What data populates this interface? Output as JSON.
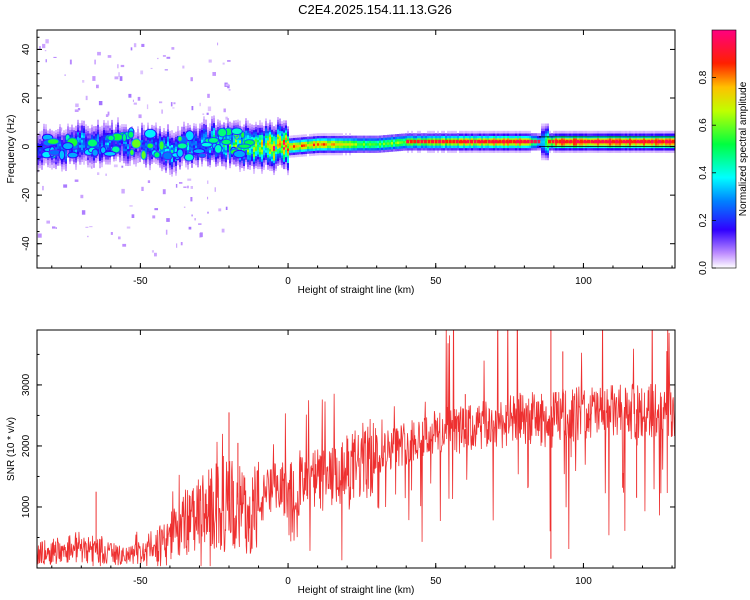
{
  "title": "C2E4.2025.154.11.13.G26",
  "chart_data": [
    {
      "type": "heatmap",
      "xlabel": "Height of straight line (km)",
      "ylabel": "Frequency (Hz)",
      "xlim": [
        -85,
        131
      ],
      "ylim": [
        -50,
        48
      ],
      "x_ticks": [
        -50,
        0,
        50,
        100
      ],
      "y_ticks": [
        -40,
        -20,
        0,
        20,
        40
      ],
      "colorbar": {
        "label": "Normalized spectral amplitude",
        "range": [
          0,
          1
        ],
        "ticks": [
          0.0,
          0.2,
          0.4,
          0.6,
          0.8
        ],
        "tick_labels": [
          "0.0",
          "0.2",
          "0.4",
          "0.6",
          "0.8"
        ],
        "colormap": [
          "#ffffff",
          "#b080ff",
          "#2000ff",
          "#00ffff",
          "#00ff00",
          "#ffff00",
          "#ff8000",
          "#ff0000",
          "#ff0080"
        ]
      },
      "ridge": {
        "description_free": true,
        "x": [
          -80,
          -70,
          -60,
          -50,
          -40,
          -30,
          -20,
          -10,
          0,
          10,
          20,
          30,
          40,
          50,
          60,
          70,
          80,
          86,
          90,
          100,
          110,
          120,
          131
        ],
        "freq": [
          0,
          1,
          2,
          1,
          -1,
          1,
          2,
          1,
          0,
          1,
          1,
          1,
          2,
          2,
          2,
          2,
          2,
          2,
          2,
          2,
          2,
          2,
          2
        ],
        "amplitude": [
          0.25,
          0.3,
          0.25,
          0.2,
          0.35,
          0.3,
          0.45,
          0.6,
          0.75,
          0.8,
          0.65,
          0.55,
          0.6,
          0.7,
          0.8,
          0.85,
          0.85,
          0.3,
          0.9,
          0.9,
          0.9,
          0.9,
          0.9
        ]
      }
    },
    {
      "type": "line",
      "xlabel": "Height of straight line (km)",
      "ylabel": "SNR (10 * v/v)",
      "xlim": [
        -85,
        131
      ],
      "ylim": [
        0,
        3900
      ],
      "x_ticks": [
        -50,
        0,
        50,
        100
      ],
      "y_ticks": [
        1000,
        2000,
        3000
      ],
      "series": [
        {
          "color": "#ee3030",
          "x": [
            -85,
            -80,
            -75,
            -70,
            -65,
            -60,
            -55,
            -50,
            -45,
            -40,
            -35,
            -30,
            -25,
            -20,
            -15,
            -10,
            -5,
            0,
            5,
            10,
            15,
            20,
            25,
            30,
            35,
            40,
            45,
            50,
            55,
            60,
            65,
            70,
            75,
            80,
            85,
            88,
            89,
            90,
            95,
            100,
            105,
            110,
            115,
            120,
            125,
            131
          ],
          "values": [
            250,
            300,
            350,
            380,
            330,
            260,
            200,
            280,
            400,
            550,
            800,
            900,
            1050,
            1100,
            1000,
            1100,
            1300,
            1350,
            1400,
            1500,
            1500,
            1650,
            1800,
            1900,
            2000,
            2100,
            2200,
            2250,
            2300,
            2300,
            2350,
            2400,
            2450,
            2500,
            2500,
            2400,
            2300,
            2550,
            2550,
            2600,
            2600,
            2600,
            2600,
            2600,
            2650,
            2650
          ],
          "spikes": [
            {
              "x": -65,
              "y": 1250
            },
            {
              "x": -20,
              "y": 2550
            },
            {
              "x": -17,
              "y": 2050
            },
            {
              "x": 89,
              "y": 3900
            },
            {
              "x": 89,
              "y": 150
            },
            {
              "x": 93,
              "y": 3550
            },
            {
              "x": 118,
              "y": 1150
            },
            {
              "x": 60,
              "y": 2850
            }
          ]
        }
      ]
    }
  ]
}
